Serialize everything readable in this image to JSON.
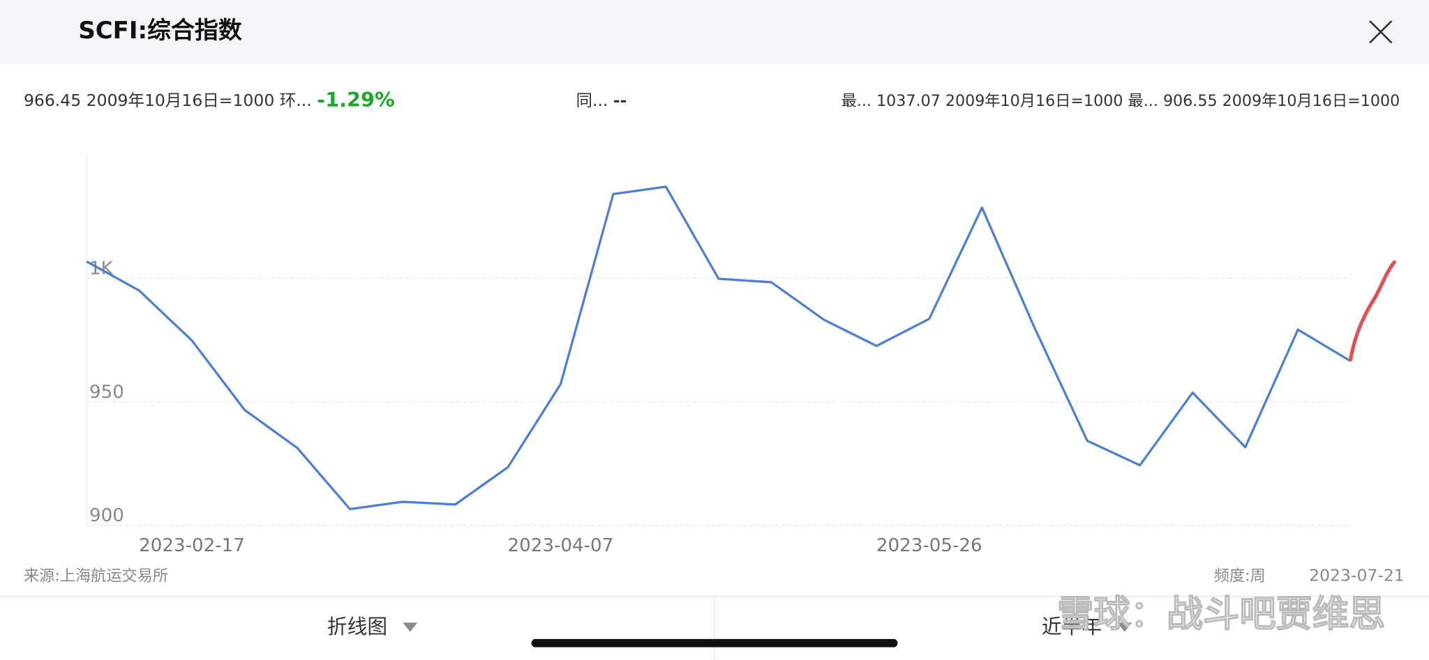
{
  "header": {
    "title": "SCFI:综合指数",
    "close": "×"
  },
  "stats": {
    "current": "966.45",
    "current_unit": "2009年10月16日=1000",
    "mom_label": "环...",
    "mom_value": "-1.29%",
    "yoy_label": "同...",
    "yoy_value": "--",
    "max_label": "最...",
    "max_value": "1037.07",
    "max_unit": "2009年10月16日=1000",
    "min_label": "最...",
    "min_value": "906.55",
    "min_unit": "2009年10月16日=1000"
  },
  "chart_data": {
    "type": "line",
    "x": [
      null,
      null,
      "2023-02-17",
      null,
      null,
      null,
      null,
      null,
      null,
      "2023-04-07",
      null,
      null,
      null,
      null,
      null,
      null,
      "2023-05-26",
      null,
      null,
      null,
      null,
      null,
      null,
      null,
      null
    ],
    "series": [
      {
        "name": "SCFI:综合指数",
        "color": "#4a7fd6",
        "values": [
          1006.8,
          995.0,
          974.8,
          946.7,
          931.3,
          906.55,
          909.5,
          908.4,
          923.5,
          957.1,
          1034.1,
          1037.07,
          999.8,
          998.4,
          983.2,
          972.6,
          983.6,
          1028.6,
          979.9,
          934.2,
          924.3,
          953.7,
          931.6,
          979.2,
          966.45
        ]
      }
    ],
    "ylim": [
      900,
      1050
    ],
    "yticks": [
      900,
      950,
      {
        "value": 1000,
        "label": "1K"
      }
    ],
    "grid": true
  },
  "footer": {
    "source": "来源:上海航运交易所",
    "frequency": "频度:周",
    "last_date": "2023-07-21"
  },
  "toolbar": {
    "chart_type": "折线图",
    "range": "近半年"
  },
  "watermark": "雪球：战斗吧贾维思"
}
